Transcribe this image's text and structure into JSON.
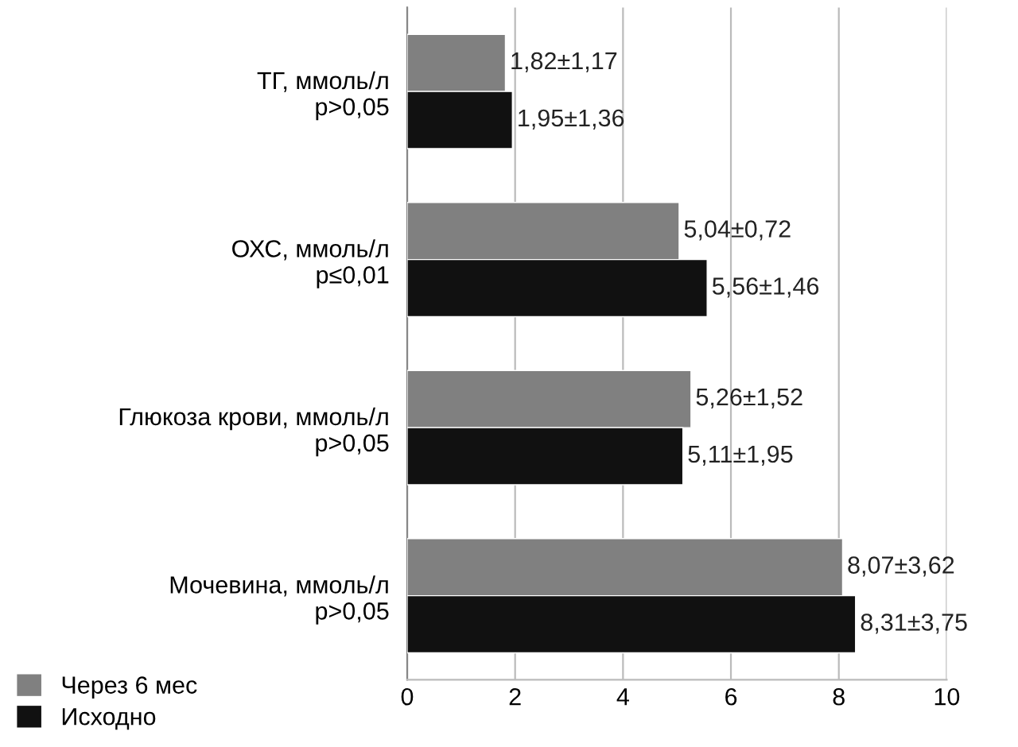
{
  "chart_data": {
    "type": "bar",
    "orientation": "horizontal",
    "categories": [
      "ТГ, ммоль/л\np>0,05",
      "ОХС, ммоль/л\np≤0,01",
      "Глюкоза крови, ммоль/л\np>0,05",
      "Мочевина, ммоль/л\np>0,05"
    ],
    "series": [
      {
        "name": "Через 6 мес",
        "color": "#808080",
        "values": [
          1.82,
          5.04,
          5.26,
          8.07
        ],
        "value_labels": [
          "1,82±1,17",
          "5,04±0,72",
          "5,26±1,52",
          "8,07±3,62"
        ]
      },
      {
        "name": "Исходно",
        "color": "#111111",
        "values": [
          1.95,
          5.56,
          5.11,
          8.31
        ],
        "value_labels": [
          "1,95±1,36",
          "5,56±1,46",
          "5,11±1,95",
          "8,31±3,75"
        ]
      }
    ],
    "xlim": [
      0,
      10
    ],
    "xticks": [
      0,
      2,
      4,
      6,
      8,
      10
    ],
    "grid": "x",
    "legend": "bottom left"
  }
}
